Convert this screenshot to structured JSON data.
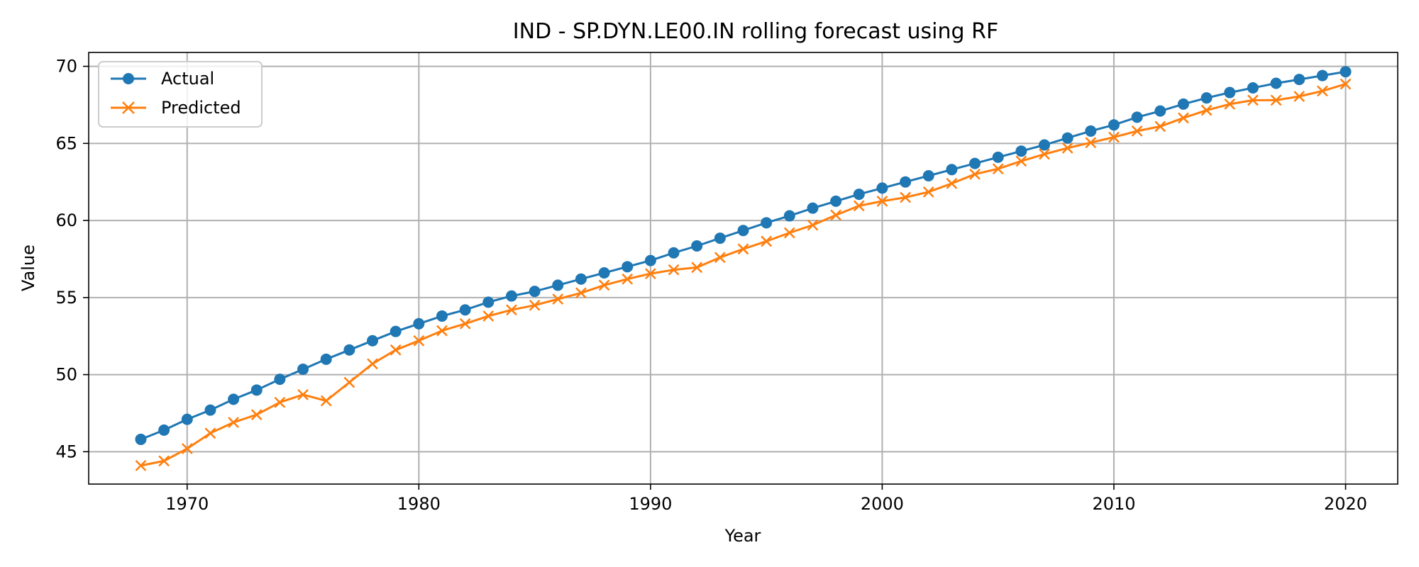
{
  "chart_data": {
    "type": "line",
    "title": "IND - SP.DYN.LE00.IN rolling forecast using RF",
    "xlabel": "Year",
    "ylabel": "Value",
    "xlim": [
      1965.75,
      2022.25
    ],
    "ylim": [
      42.9,
      70.9
    ],
    "xticks": [
      1970,
      1980,
      1990,
      2000,
      2010,
      2020
    ],
    "yticks": [
      45,
      50,
      55,
      60,
      65,
      70
    ],
    "grid": true,
    "legend_position": "upper-left",
    "x": [
      1968,
      1969,
      1970,
      1971,
      1972,
      1973,
      1974,
      1975,
      1976,
      1977,
      1978,
      1979,
      1980,
      1981,
      1982,
      1983,
      1984,
      1985,
      1986,
      1987,
      1988,
      1989,
      1990,
      1991,
      1992,
      1993,
      1994,
      1995,
      1996,
      1997,
      1998,
      1999,
      2000,
      2001,
      2002,
      2003,
      2004,
      2005,
      2006,
      2007,
      2008,
      2009,
      2010,
      2011,
      2012,
      2013,
      2014,
      2015,
      2016,
      2017,
      2018,
      2019,
      2020
    ],
    "series": [
      {
        "name": "Actual",
        "color": "#1f77b4",
        "marker": "circle",
        "values": [
          45.8,
          46.4,
          47.1,
          47.7,
          48.4,
          49.0,
          49.7,
          50.35,
          51.0,
          51.6,
          52.2,
          52.8,
          53.3,
          53.8,
          54.2,
          54.7,
          55.1,
          55.4,
          55.8,
          56.2,
          56.6,
          57.0,
          57.4,
          57.9,
          58.35,
          58.85,
          59.35,
          59.85,
          60.3,
          60.8,
          61.25,
          61.7,
          62.1,
          62.5,
          62.9,
          63.3,
          63.7,
          64.1,
          64.5,
          64.9,
          65.35,
          65.8,
          66.2,
          66.7,
          67.1,
          67.55,
          67.95,
          68.3,
          68.6,
          68.9,
          69.15,
          69.4,
          69.65
        ]
      },
      {
        "name": "Predicted",
        "color": "#ff7f0e",
        "marker": "x",
        "values": [
          44.1,
          44.4,
          45.2,
          46.2,
          46.9,
          47.4,
          48.2,
          48.7,
          48.3,
          49.5,
          50.7,
          51.6,
          52.2,
          52.85,
          53.3,
          53.8,
          54.2,
          54.5,
          54.9,
          55.3,
          55.8,
          56.2,
          56.55,
          56.8,
          56.95,
          57.6,
          58.15,
          58.65,
          59.2,
          59.7,
          60.35,
          60.95,
          61.25,
          61.5,
          61.85,
          62.4,
          63.0,
          63.35,
          63.85,
          64.3,
          64.7,
          65.05,
          65.4,
          65.8,
          66.1,
          66.65,
          67.15,
          67.55,
          67.8,
          67.8,
          68.05,
          68.4,
          68.85
        ]
      }
    ]
  }
}
